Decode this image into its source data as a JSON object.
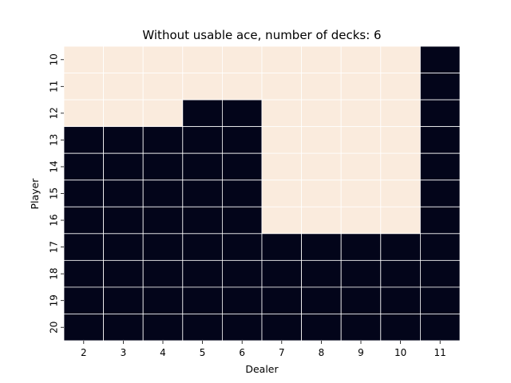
{
  "chart_data": {
    "type": "heatmap",
    "title": "Without usable ace, number of decks: 6",
    "xlabel": "Dealer",
    "ylabel": "Player",
    "x_categories": [
      "2",
      "3",
      "4",
      "5",
      "6",
      "7",
      "8",
      "9",
      "10",
      "11"
    ],
    "y_categories": [
      "10",
      "11",
      "12",
      "13",
      "14",
      "15",
      "16",
      "17",
      "18",
      "19",
      "20"
    ],
    "values": [
      [
        1,
        1,
        1,
        1,
        1,
        1,
        1,
        1,
        1,
        0
      ],
      [
        1,
        1,
        1,
        1,
        1,
        1,
        1,
        1,
        1,
        0
      ],
      [
        1,
        1,
        1,
        0,
        0,
        1,
        1,
        1,
        1,
        0
      ],
      [
        0,
        0,
        0,
        0,
        0,
        1,
        1,
        1,
        1,
        0
      ],
      [
        0,
        0,
        0,
        0,
        0,
        1,
        1,
        1,
        1,
        0
      ],
      [
        0,
        0,
        0,
        0,
        0,
        1,
        1,
        1,
        1,
        0
      ],
      [
        0,
        0,
        0,
        0,
        0,
        1,
        1,
        1,
        1,
        0
      ],
      [
        0,
        0,
        0,
        0,
        0,
        0,
        0,
        0,
        0,
        0
      ],
      [
        0,
        0,
        0,
        0,
        0,
        0,
        0,
        0,
        0,
        0
      ],
      [
        0,
        0,
        0,
        0,
        0,
        0,
        0,
        0,
        0,
        0
      ],
      [
        0,
        0,
        0,
        0,
        0,
        0,
        0,
        0,
        0,
        0
      ]
    ],
    "colormap": {
      "0": "#03051a",
      "1": "#faebdd"
    },
    "cell_border_color": "#ffffff",
    "colorbar": false
  }
}
